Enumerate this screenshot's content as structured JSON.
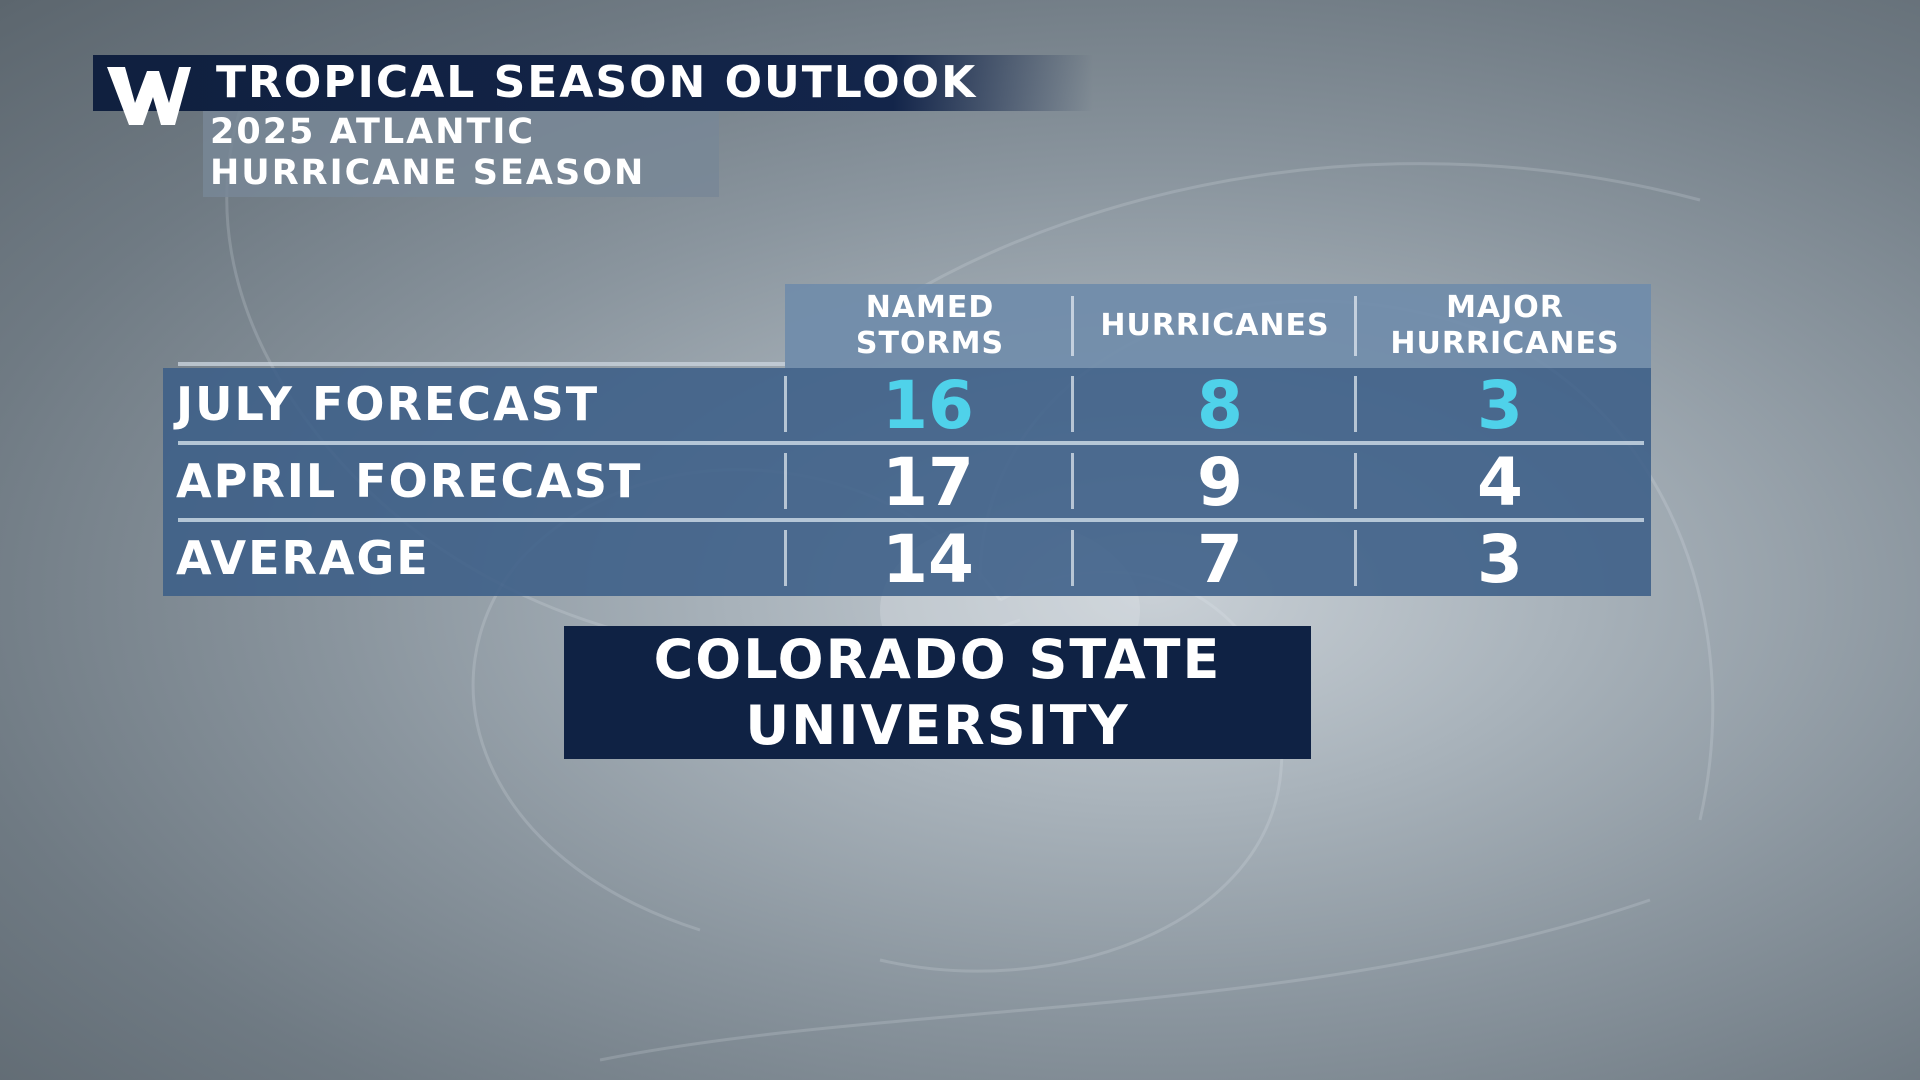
{
  "header": {
    "logo": "W",
    "title": "TROPICAL SEASON OUTLOOK",
    "subtitle_line1": "2025 ATLANTIC",
    "subtitle_line2": "HURRICANE SEASON"
  },
  "colors": {
    "title_bar": "#13254a",
    "table_body": "#3c5f87",
    "table_header": "#708caa",
    "highlight": "#4fd2ea",
    "source_box": "#0f2244"
  },
  "chart_data": {
    "type": "table",
    "title": "TROPICAL SEASON OUTLOOK",
    "subtitle": "2025 ATLANTIC HURRICANE SEASON",
    "columns": [
      {
        "line1": "NAMED",
        "line2": "STORMS"
      },
      {
        "line1": "HURRICANES",
        "line2": ""
      },
      {
        "line1": "MAJOR",
        "line2": "HURRICANES"
      }
    ],
    "rows": [
      {
        "label": "JULY FORECAST",
        "values": [
          "16",
          "8",
          "3"
        ],
        "highlight": true
      },
      {
        "label": "APRIL FORECAST",
        "values": [
          "17",
          "9",
          "4"
        ],
        "highlight": false
      },
      {
        "label": "AVERAGE",
        "values": [
          "14",
          "7",
          "3"
        ],
        "highlight": false
      }
    ]
  },
  "source": {
    "line1": "COLORADO STATE",
    "line2": "UNIVERSITY"
  }
}
